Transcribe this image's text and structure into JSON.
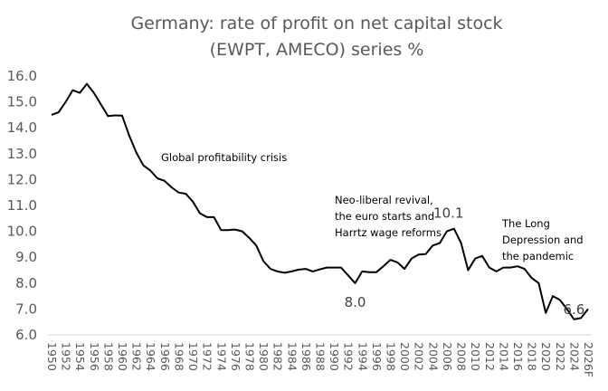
{
  "chart_data": {
    "type": "line",
    "title": [
      "Germany: rate of profit on net capital stock",
      "(EWPT, AMECO) series %"
    ],
    "xlabel": "",
    "ylabel": "",
    "ylim": [
      6.0,
      16.0
    ],
    "yticks": [
      "6.0",
      "7.0",
      "8.0",
      "9.0",
      "10.0",
      "11.0",
      "12.0",
      "13.0",
      "14.0",
      "15.0",
      "16.0"
    ],
    "grid": false,
    "legend": "none",
    "line_color": "#000000",
    "x": [
      "1950",
      "1951",
      "1952",
      "1953",
      "1954",
      "1955",
      "1956",
      "1957",
      "1958",
      "1959",
      "1960",
      "1961",
      "1962",
      "1963",
      "1964",
      "1965",
      "1966",
      "1967",
      "1968",
      "1969",
      "1970",
      "1971",
      "1972",
      "1973",
      "1974",
      "1975",
      "1976",
      "1977",
      "1978",
      "1979",
      "1980",
      "1981",
      "1982",
      "1983",
      "1984",
      "1985",
      "1986",
      "1987",
      "1988",
      "1989",
      "1990",
      "1991",
      "1992",
      "1993",
      "1994",
      "1995",
      "1996",
      "1997",
      "1998",
      "1999",
      "2000",
      "2001",
      "2002",
      "2003",
      "2004",
      "2005",
      "2006",
      "2007",
      "2008",
      "2009",
      "2010",
      "2011",
      "2012",
      "2013",
      "2014",
      "2015",
      "2016",
      "2017",
      "2018",
      "2019",
      "2020",
      "2021",
      "2022",
      "2023",
      "2024",
      "2025",
      "2026F"
    ],
    "xtick_labels": [
      "1950",
      "1952",
      "1954",
      "1956",
      "1958",
      "1960",
      "1962",
      "1964",
      "1966",
      "1968",
      "1970",
      "1972",
      "1974",
      "1976",
      "1978",
      "1980",
      "1982",
      "1984",
      "1986",
      "1988",
      "1990",
      "1992",
      "1994",
      "1996",
      "1998",
      "2000",
      "2002",
      "2004",
      "2006",
      "2008",
      "2010",
      "2012",
      "2014",
      "2016",
      "2018",
      "2020",
      "2022",
      "2024",
      "2026F"
    ],
    "series": [
      {
        "name": "Rate of profit",
        "values": [
          14.5,
          14.6,
          15.0,
          15.45,
          15.35,
          15.7,
          15.35,
          14.9,
          14.45,
          14.48,
          14.47,
          13.7,
          13.05,
          12.55,
          12.35,
          12.05,
          11.95,
          11.7,
          11.5,
          11.45,
          11.15,
          10.7,
          10.55,
          10.55,
          10.05,
          10.05,
          10.07,
          10.0,
          9.75,
          9.45,
          8.85,
          8.55,
          8.45,
          8.4,
          8.45,
          8.52,
          8.55,
          8.45,
          8.53,
          8.6,
          8.6,
          8.6,
          8.3,
          8.0,
          8.45,
          8.42,
          8.42,
          8.65,
          8.9,
          8.8,
          8.55,
          8.95,
          9.1,
          9.12,
          9.45,
          9.55,
          10.0,
          10.1,
          9.55,
          8.5,
          8.95,
          9.05,
          8.6,
          8.45,
          8.6,
          8.6,
          8.65,
          8.55,
          8.2,
          8.0,
          6.85,
          7.5,
          7.35,
          7.0,
          6.6,
          6.65,
          7.0
        ]
      }
    ],
    "data_labels": [
      {
        "x": "1993",
        "text": "8.0"
      },
      {
        "x": "2007",
        "text": "10.1"
      },
      {
        "x": "2024",
        "text": "6.6"
      }
    ],
    "annotations": [
      {
        "lines": [
          "Global profitability crisis"
        ]
      },
      {
        "lines": [
          "Neo-liberal revival,",
          "the euro starts and",
          "Harrtz wage reforms"
        ]
      },
      {
        "lines": [
          "The Long",
          "Depression and",
          "the pandemic"
        ]
      }
    ]
  }
}
